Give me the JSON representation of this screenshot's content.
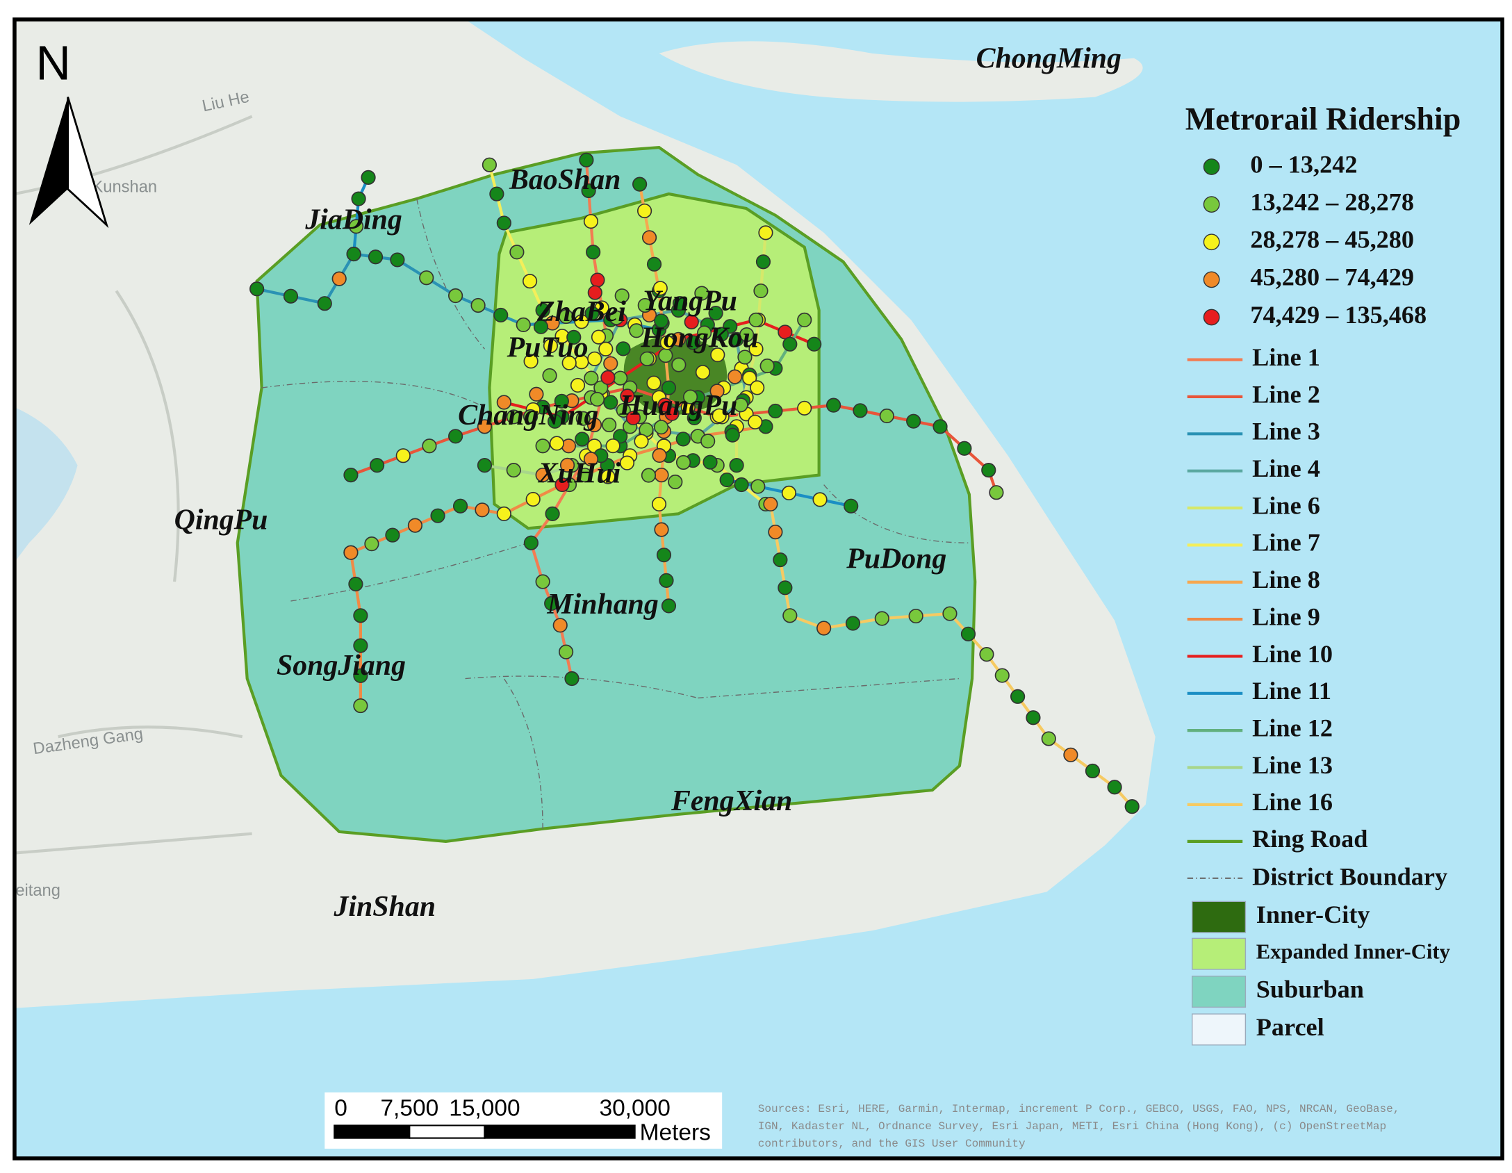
{
  "north_arrow": "N",
  "districts": [
    "ChongMing",
    "JiaDing",
    "BaoShan",
    "ZhaBei",
    "YangPu",
    "PuTuo",
    "HongKou",
    "ChangNing",
    "HuangPu",
    "XuHui",
    "QingPu",
    "PuDong",
    "Minhang",
    "SongJiang",
    "FengXian",
    "JinShan"
  ],
  "basemap_labels": [
    "Kunshan",
    "Liu He",
    "Dazheng Gang",
    "eitang"
  ],
  "legend": {
    "title": "Metrorail Ridership",
    "classes": [
      {
        "label": "0 – 13,242",
        "color": "#15861a"
      },
      {
        "label": "13,242 – 28,278",
        "color": "#78c83c"
      },
      {
        "label": "28,278 – 45,280",
        "color": "#f6f21c"
      },
      {
        "label": "45,280 – 74,429",
        "color": "#f08a28"
      },
      {
        "label": "74,429 – 135,468",
        "color": "#e61e1e"
      }
    ],
    "lines": [
      {
        "label": "Line 1",
        "color": "#f27c52"
      },
      {
        "label": "Line 2",
        "color": "#e8553a"
      },
      {
        "label": "Line 3",
        "color": "#2a92b4"
      },
      {
        "label": "Line 4",
        "color": "#5aa8a0"
      },
      {
        "label": "Line 6",
        "color": "#d6e86a"
      },
      {
        "label": "Line 7",
        "color": "#f4ee5a"
      },
      {
        "label": "Line 8",
        "color": "#f6a850"
      },
      {
        "label": "Line 9",
        "color": "#f08a46"
      },
      {
        "label": "Line 10",
        "color": "#e61e1e"
      },
      {
        "label": "Line 11",
        "color": "#1a8ec4"
      },
      {
        "label": "Line 12",
        "color": "#62b07e"
      },
      {
        "label": "Line 13",
        "color": "#a8d68a"
      },
      {
        "label": "Line 16",
        "color": "#f6ca62"
      }
    ],
    "ring_road": {
      "label": "Ring Road",
      "color": "#5a9e24"
    },
    "district_boundary": {
      "label": "District Boundary",
      "color": "#6a6a6a"
    },
    "zones": [
      {
        "label": "Inner-City",
        "color": "#2e6b10"
      },
      {
        "label": "Expanded Inner-City",
        "color": "#b6ee78"
      },
      {
        "label": "Suburban",
        "color": "#7fd4c0"
      },
      {
        "label": "Parcel",
        "color": "#eef6fb"
      }
    ]
  },
  "scale_bar": {
    "ticks": [
      0,
      {
        "value": 7500,
        "label": "7,500"
      },
      {
        "value": 15000,
        "label": "15,000"
      },
      {
        "value": 30000,
        "label": "30,000"
      }
    ],
    "unit": "Meters"
  },
  "sources": [
    "Sources: Esri, HERE, Garmin, Intermap, increment P Corp., GEBCO, USGS, FAO, NPS, NRCAN, GeoBase,",
    "IGN, Kadaster NL, Ordnance Survey, Esri Japan, METI, Esri China (Hong Kong), (c) OpenStreetMap",
    "contributors, and the GIS User Community"
  ]
}
